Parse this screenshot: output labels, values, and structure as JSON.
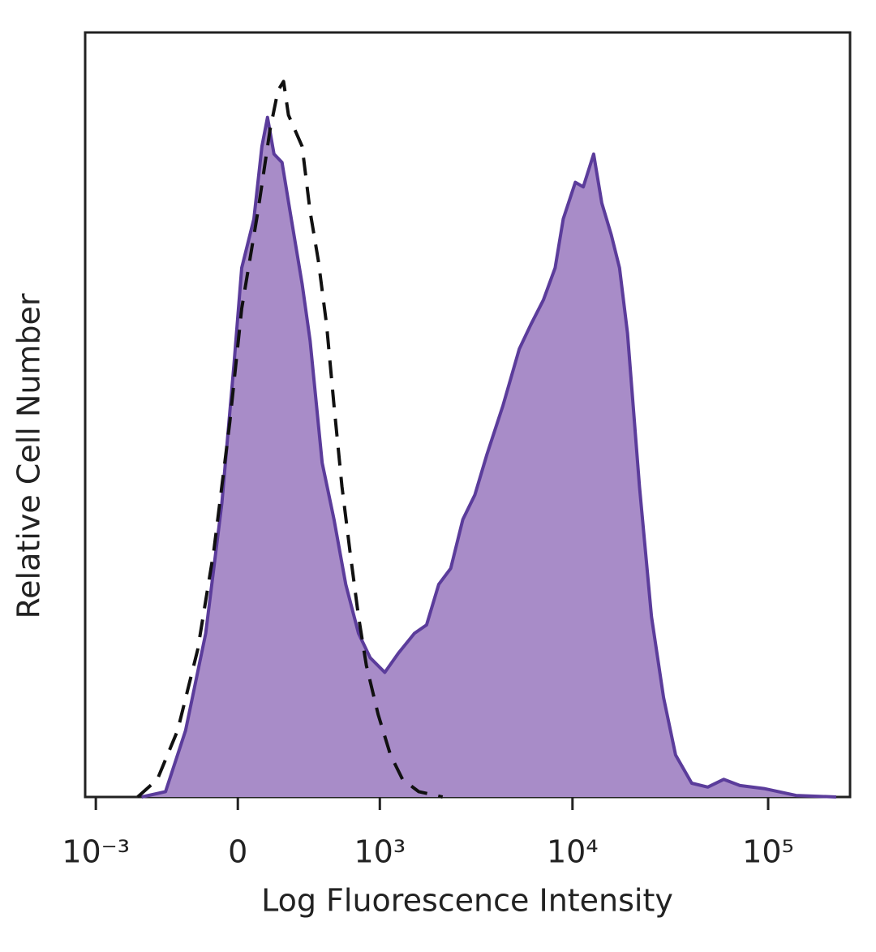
{
  "chart_data": {
    "type": "histogram-overlay",
    "xlabel": "Log Fluorescence Intensity",
    "ylabel": "Relative Cell Number",
    "xscale": "biexponential",
    "xlim": [
      -1143,
      262144
    ],
    "ylim": [
      0,
      100
    ],
    "xticks": [
      {
        "value": -1000,
        "label": "10⁻³"
      },
      0,
      {
        "value": 1000,
        "label": "10³"
      },
      {
        "value": 10000,
        "label": "10⁴"
      },
      {
        "value": 100000,
        "label": "10⁵"
      }
    ],
    "series": [
      {
        "color": "#5b3c9b",
        "fill": "#a88cc8",
        "dashed": false,
        "x": [
          -542,
          -373,
          -255,
          -151,
          -74,
          -18,
          18,
          74,
          112,
          139,
          171,
          212,
          255,
          324,
          373,
          454,
          542,
          640,
          760,
          885,
          1065,
          1260,
          1533,
          1775,
          2055,
          2371,
          2738,
          3159,
          3643,
          4407,
          5343,
          6123,
          7098,
          8151,
          8970,
          10335,
          11349,
          12831,
          14118,
          15795,
          17394,
          19110,
          21996,
          25350,
          29211,
          33657,
          40677,
          49140,
          59280,
          71760,
          95160,
          138840,
          222690
        ],
        "values": [
          0,
          0.7,
          8.7,
          21.4,
          38.4,
          56.5,
          69.2,
          75.6,
          85.1,
          88.9,
          84.1,
          83.0,
          76.6,
          67.1,
          59.7,
          43.7,
          36.3,
          27.8,
          21.4,
          18.2,
          16.3,
          18.8,
          21.4,
          22.5,
          27.8,
          29.9,
          36.3,
          39.5,
          44.8,
          51.2,
          58.6,
          61.8,
          65.0,
          69.2,
          75.6,
          80.4,
          79.8,
          84.1,
          77.7,
          73.5,
          69.2,
          60.7,
          40.6,
          23.6,
          13.0,
          5.5,
          1.8,
          1.3,
          2.3,
          1.5,
          1.1,
          0.2,
          0
        ]
      },
      {
        "color": "#111111",
        "fill": "none",
        "dashed": true,
        "x": [
          -574,
          -427,
          -300,
          -191,
          -112,
          -37,
          18,
          93,
          151,
          191,
          220,
          246,
          324,
          373,
          427,
          485,
          542,
          607,
          678,
          760,
          842,
          979,
          1143,
          1326,
          1615,
          2153
        ],
        "values": [
          0,
          2.3,
          8.7,
          19.3,
          32.1,
          49.0,
          63.9,
          76.6,
          87.2,
          92.4,
          93.6,
          89.2,
          85.1,
          76.6,
          70.2,
          61.8,
          51.2,
          40.6,
          32.1,
          23.6,
          17.2,
          10.8,
          5.5,
          2.3,
          0.7,
          0
        ]
      }
    ]
  }
}
